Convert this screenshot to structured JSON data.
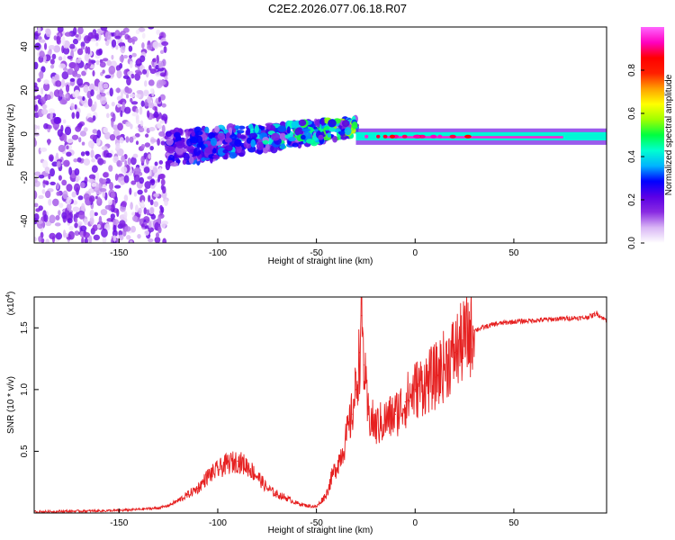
{
  "title": "C2E2.2026.077.06.18.R07",
  "chart_data": [
    {
      "id": "spectrogram",
      "type": "heatmap",
      "xlabel": "Height of straight line (km)",
      "ylabel": "Frequency (Hz)",
      "xlim": [
        -193,
        97
      ],
      "ylim": [
        -50,
        49
      ],
      "xticks": [
        -150,
        -100,
        -50,
        0,
        50
      ],
      "yticks": [
        -40,
        -20,
        0,
        20,
        40
      ],
      "colorbar": {
        "label": "Normalized spectral amplitude",
        "ticks": [
          0.0,
          0.2,
          0.4,
          0.6,
          0.8
        ],
        "tick_labels": [
          "0.0",
          "0.2",
          "0.4",
          "0.6",
          "0.8"
        ],
        "range": [
          0,
          1
        ],
        "colormap": [
          "#ffffff",
          "#d9b6f5",
          "#8a2be2",
          "#5a00e6",
          "#0000ff",
          "#00b4ff",
          "#00ffd0",
          "#00ff40",
          "#a0ff00",
          "#ffff00",
          "#ffa000",
          "#ff2000",
          "#ff0000",
          "#ff00c0",
          "#ff66ff"
        ]
      },
      "regions": [
        {
          "desc": "scattered low-amplitude noise across all frequencies",
          "x": [
            -193,
            -126
          ],
          "y": [
            -50,
            49
          ],
          "amplitude": [
            0.02,
            0.2
          ]
        },
        {
          "desc": "broad band near 0 Hz rising slightly with height",
          "x": [
            -126,
            -30
          ],
          "y_center": [
            -7,
            3
          ],
          "amplitude": [
            0.1,
            0.45
          ]
        },
        {
          "desc": "narrow coherent band near -1 Hz",
          "x": [
            -30,
            97
          ],
          "y_center": [
            -1,
            -2
          ],
          "amplitude": [
            0.5,
            0.95
          ]
        }
      ]
    },
    {
      "id": "snr",
      "type": "line",
      "xlabel": "Height of straight line (km)",
      "ylabel": "SNR (10 * v/v)",
      "y_multiplier": "(x10",
      "y_multiplier_exp": "4",
      "y_multiplier_close": ")",
      "xlim": [
        -193,
        97
      ],
      "ylim": [
        0,
        1.75
      ],
      "xticks": [
        -150,
        -100,
        -50,
        0,
        50
      ],
      "yticks": [
        0.5,
        1.0,
        1.5
      ],
      "ytick_labels": [
        "0.5",
        "1.0",
        "1.5"
      ],
      "color": "#e62020",
      "x": [
        -193,
        -170,
        -150,
        -140,
        -130,
        -125,
        -120,
        -115,
        -110,
        -105,
        -100,
        -95,
        -90,
        -85,
        -80,
        -75,
        -70,
        -65,
        -60,
        -55,
        -50,
        -45,
        -42,
        -38,
        -35,
        -32,
        -30,
        -28,
        -27,
        -26,
        -24,
        -20,
        -15,
        -10,
        -5,
        0,
        5,
        10,
        15,
        20,
        25,
        30,
        40,
        50,
        60,
        70,
        80,
        85,
        90,
        92,
        95,
        97
      ],
      "y": [
        0.01,
        0.015,
        0.02,
        0.03,
        0.04,
        0.06,
        0.1,
        0.15,
        0.2,
        0.3,
        0.35,
        0.4,
        0.42,
        0.38,
        0.3,
        0.2,
        0.15,
        0.12,
        0.08,
        0.06,
        0.05,
        0.15,
        0.3,
        0.45,
        0.6,
        0.8,
        1.0,
        1.3,
        1.6,
        1.2,
        0.8,
        0.7,
        0.75,
        0.8,
        0.9,
        1.0,
        1.05,
        1.1,
        1.2,
        1.3,
        1.4,
        1.48,
        1.53,
        1.55,
        1.56,
        1.57,
        1.58,
        1.58,
        1.6,
        1.62,
        1.58,
        1.56
      ]
    }
  ]
}
